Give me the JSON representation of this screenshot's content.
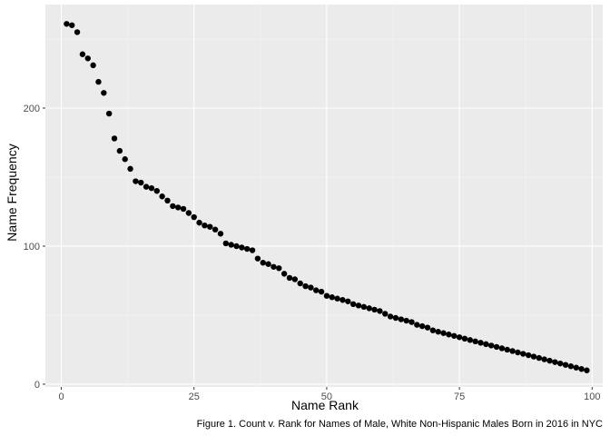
{
  "chart_data": {
    "type": "scatter",
    "title": "",
    "xlabel": "Name Rank",
    "ylabel": "Name Frequency",
    "caption": "Figure 1. Count v. Rank for Names of Male, White Non-Hispanic Males Born in 2016 in NYC",
    "xlim": [
      -3,
      102
    ],
    "ylim": [
      -2,
      275
    ],
    "x_ticks": [
      0,
      25,
      50,
      75,
      100
    ],
    "y_ticks": [
      0,
      100,
      200
    ],
    "grid": true,
    "legend": "none",
    "colors": {
      "panel": "#ebebeb",
      "grid_major": "#ffffff",
      "grid_minor": "#f5f5f5",
      "point": "#000000"
    },
    "x": [
      1,
      2,
      3,
      4,
      5,
      6,
      7,
      8,
      9,
      10,
      11,
      12,
      13,
      14,
      15,
      16,
      17,
      18,
      19,
      20,
      21,
      22,
      23,
      24,
      25,
      26,
      27,
      28,
      29,
      30,
      31,
      32,
      33,
      34,
      35,
      36,
      37,
      38,
      39,
      40,
      41,
      42,
      43,
      44,
      45,
      46,
      47,
      48,
      49,
      50,
      51,
      52,
      53,
      54,
      55,
      56,
      57,
      58,
      59,
      60,
      61,
      62,
      63,
      64,
      65,
      66,
      67,
      68,
      69,
      70,
      71,
      72,
      73,
      74,
      75,
      76,
      77,
      78,
      79,
      80,
      81,
      82,
      83,
      84,
      85,
      86,
      87,
      88,
      89,
      90,
      91,
      92,
      93,
      94,
      95,
      96,
      97,
      98,
      99
    ],
    "y": [
      261,
      260,
      255,
      239,
      236,
      231,
      219,
      211,
      196,
      178,
      169,
      163,
      156,
      147,
      146,
      143,
      142,
      140,
      136,
      133,
      129,
      128,
      127,
      124,
      121,
      117,
      115,
      114,
      112,
      109,
      102,
      101,
      100,
      99,
      98,
      97,
      91,
      88,
      87,
      85,
      84,
      80,
      77,
      76,
      73,
      71,
      70,
      68,
      67,
      64,
      63,
      62,
      61,
      60,
      58,
      57,
      56,
      55,
      54,
      53,
      51,
      49,
      48,
      47,
      46,
      45,
      43,
      42,
      41,
      39,
      38,
      37,
      36,
      35,
      34,
      33,
      32,
      31,
      30,
      29,
      28,
      27,
      26,
      25,
      24,
      23,
      22,
      21,
      20,
      19,
      18,
      17,
      16,
      15,
      14,
      13,
      12,
      11,
      10
    ]
  }
}
